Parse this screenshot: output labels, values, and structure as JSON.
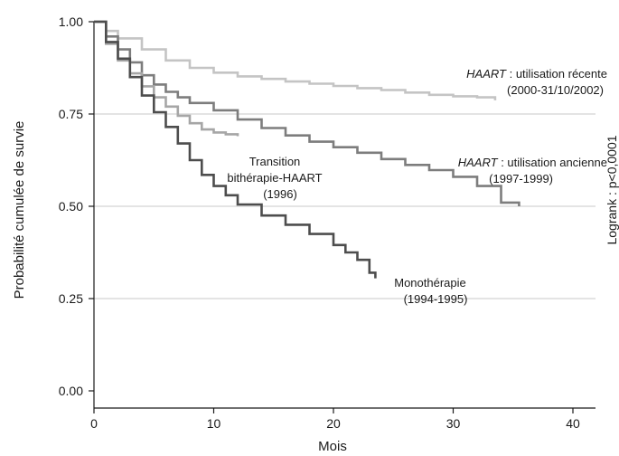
{
  "chart_data": {
    "type": "line",
    "title": "",
    "xlabel": "Mois",
    "ylabel": "Probabilité cumulée de survie",
    "xlim": [
      0,
      40
    ],
    "ylim": [
      0,
      1
    ],
    "x_ticks": [
      "0",
      "10",
      "20",
      "30",
      "40"
    ],
    "y_ticks": [
      "0.00",
      "0.25",
      "0.50",
      "0.75",
      "1.00"
    ],
    "grid": "horizontal",
    "side_label": "Logrank : p<0,0001",
    "colors": {
      "axis": "#1a1a1a",
      "grid": "#c8c8c8"
    },
    "series": [
      {
        "name": "HAART : utilisation récente (2000-31/10/2002)",
        "color": "#c4c4c4",
        "points": [
          [
            0,
            1.0
          ],
          [
            1,
            0.975
          ],
          [
            2,
            0.955
          ],
          [
            4,
            0.925
          ],
          [
            6,
            0.895
          ],
          [
            8,
            0.875
          ],
          [
            10,
            0.862
          ],
          [
            12,
            0.852
          ],
          [
            14,
            0.845
          ],
          [
            16,
            0.838
          ],
          [
            18,
            0.832
          ],
          [
            20,
            0.826
          ],
          [
            22,
            0.82
          ],
          [
            24,
            0.815
          ],
          [
            26,
            0.808
          ],
          [
            28,
            0.802
          ],
          [
            30,
            0.798
          ],
          [
            32,
            0.795
          ],
          [
            33.5,
            0.787
          ]
        ]
      },
      {
        "name": "HAART : utilisation ancienne (1997-1999)",
        "color": "#7d7d7d",
        "points": [
          [
            0,
            1.0
          ],
          [
            1,
            0.96
          ],
          [
            2,
            0.925
          ],
          [
            3,
            0.89
          ],
          [
            4,
            0.855
          ],
          [
            5,
            0.83
          ],
          [
            6,
            0.81
          ],
          [
            7,
            0.795
          ],
          [
            8,
            0.78
          ],
          [
            10,
            0.76
          ],
          [
            12,
            0.735
          ],
          [
            14,
            0.712
          ],
          [
            16,
            0.692
          ],
          [
            18,
            0.675
          ],
          [
            20,
            0.66
          ],
          [
            22,
            0.645
          ],
          [
            24,
            0.628
          ],
          [
            26,
            0.612
          ],
          [
            28,
            0.598
          ],
          [
            30,
            0.58
          ],
          [
            32,
            0.555
          ],
          [
            34,
            0.51
          ],
          [
            35.5,
            0.5
          ]
        ]
      },
      {
        "name": "Transition bithérapie-HAART (1996)",
        "color": "#a6a6a6",
        "points": [
          [
            0,
            1.0
          ],
          [
            1,
            0.94
          ],
          [
            2,
            0.895
          ],
          [
            3,
            0.86
          ],
          [
            4,
            0.825
          ],
          [
            5,
            0.795
          ],
          [
            6,
            0.77
          ],
          [
            7,
            0.745
          ],
          [
            8,
            0.725
          ],
          [
            9,
            0.708
          ],
          [
            10,
            0.7
          ],
          [
            11,
            0.695
          ],
          [
            12,
            0.69
          ]
        ]
      },
      {
        "name": "Monothérapie (1994-1995)",
        "color": "#4d4d4d",
        "points": [
          [
            0,
            1.0
          ],
          [
            1,
            0.945
          ],
          [
            2,
            0.9
          ],
          [
            3,
            0.85
          ],
          [
            4,
            0.8
          ],
          [
            5,
            0.755
          ],
          [
            6,
            0.715
          ],
          [
            7,
            0.67
          ],
          [
            8,
            0.625
          ],
          [
            9,
            0.585
          ],
          [
            10,
            0.555
          ],
          [
            11,
            0.53
          ],
          [
            12,
            0.505
          ],
          [
            14,
            0.475
          ],
          [
            16,
            0.45
          ],
          [
            18,
            0.425
          ],
          [
            20,
            0.395
          ],
          [
            21,
            0.375
          ],
          [
            22,
            0.355
          ],
          [
            23,
            0.32
          ],
          [
            23.5,
            0.305
          ]
        ]
      }
    ],
    "annotations": [
      {
        "italic_part": "HAART",
        "rest": " : utilisation récente",
        "line2": "(2000-31/10/2002)"
      },
      {
        "italic_part": "HAART",
        "rest": " : utilisation ancienne",
        "line2": "(1997-1999)"
      },
      {
        "italic_part": "",
        "rest": "Transition",
        "line2": "bithérapie-HAART",
        "line3": "(1996)"
      },
      {
        "italic_part": "",
        "rest": "Monothérapie",
        "line2": "(1994-1995)"
      }
    ]
  }
}
